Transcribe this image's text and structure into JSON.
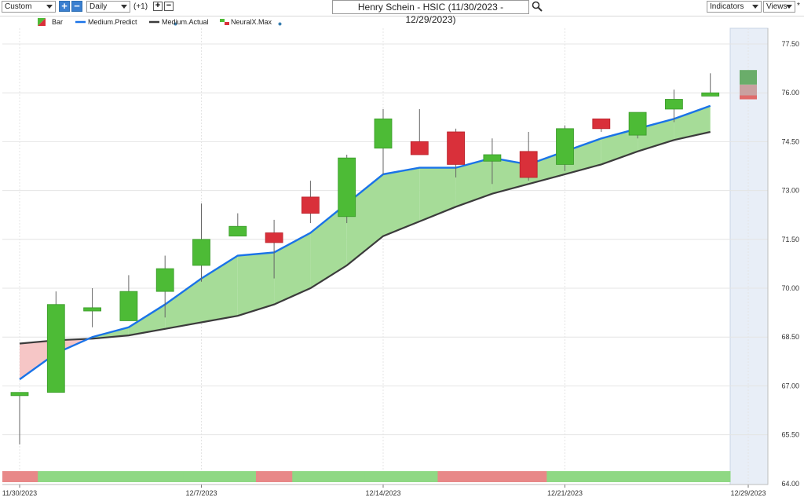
{
  "toolbar": {
    "range_select": "Custom",
    "period_select": "Daily",
    "offset_label": "(+1)",
    "chart_title": "Henry Schein - HSIC (11/30/2023 - 12/29/2023)",
    "indicators_label": "Indicators",
    "views_label": "Views",
    "views_marker": "*"
  },
  "legend": {
    "bar": "Bar",
    "predict": "Medium.Predict",
    "actual": "Medium.Actual",
    "neural": "NeuralX.Max"
  },
  "colors": {
    "up": "#4dbb36",
    "down": "#d9303a",
    "predict_line": "#1a73e8",
    "actual_line": "#3b3b3b",
    "fill_bull": "#a6dc98",
    "fill_bear": "#f6c6c6",
    "strip_bull": "#8fd884",
    "strip_bear": "#e88888",
    "forecast_zone": "#e8eef7"
  },
  "chart_data": {
    "type": "candlestick",
    "title": "Henry Schein - HSIC (11/30/2023 - 12/29/2023)",
    "x_tick_labels": [
      "11/30/2023",
      "12/7/2023",
      "12/14/2023",
      "12/21/2023",
      "12/29/2023"
    ],
    "x_tick_index": [
      0,
      5,
      10,
      15,
      20
    ],
    "y_ticks": [
      "77.50",
      "76.00",
      "74.50",
      "73.00",
      "71.50",
      "70.00",
      "68.50",
      "67.00",
      "65.50",
      "64.00"
    ],
    "ylim": [
      64.0,
      77.5
    ],
    "grid": true,
    "candles": [
      {
        "o": 66.7,
        "h": 66.8,
        "l": 65.2,
        "c": 66.8
      },
      {
        "o": 66.8,
        "h": 69.9,
        "l": 66.8,
        "c": 69.5
      },
      {
        "o": 69.3,
        "h": 70.0,
        "l": 68.8,
        "c": 69.4
      },
      {
        "o": 69.0,
        "h": 70.4,
        "l": 69.0,
        "c": 69.9
      },
      {
        "o": 69.9,
        "h": 71.0,
        "l": 69.1,
        "c": 70.6
      },
      {
        "o": 70.7,
        "h": 72.6,
        "l": 70.2,
        "c": 71.5
      },
      {
        "o": 71.6,
        "h": 72.3,
        "l": 71.6,
        "c": 71.9
      },
      {
        "o": 71.7,
        "h": 72.1,
        "l": 70.3,
        "c": 71.4
      },
      {
        "o": 72.8,
        "h": 73.3,
        "l": 72.0,
        "c": 72.3
      },
      {
        "o": 72.2,
        "h": 74.1,
        "l": 72.0,
        "c": 74.0
      },
      {
        "o": 74.3,
        "h": 75.5,
        "l": 73.5,
        "c": 75.2
      },
      {
        "o": 74.5,
        "h": 75.5,
        "l": 74.1,
        "c": 74.1
      },
      {
        "o": 74.8,
        "h": 74.9,
        "l": 73.4,
        "c": 73.8
      },
      {
        "o": 73.9,
        "h": 74.6,
        "l": 73.2,
        "c": 74.1
      },
      {
        "o": 74.2,
        "h": 74.8,
        "l": 73.3,
        "c": 73.4
      },
      {
        "o": 73.8,
        "h": 75.0,
        "l": 73.6,
        "c": 74.9
      },
      {
        "o": 75.2,
        "h": 75.2,
        "l": 74.8,
        "c": 74.9
      },
      {
        "o": 74.7,
        "h": 75.4,
        "l": 74.6,
        "c": 75.4
      },
      {
        "o": 75.5,
        "h": 76.1,
        "l": 75.1,
        "c": 75.8
      },
      {
        "o": 75.9,
        "h": 76.6,
        "l": 75.9,
        "c": 76.0
      }
    ],
    "series": [
      {
        "name": "Medium.Predict",
        "values": [
          67.2,
          68.0,
          68.5,
          68.8,
          69.5,
          70.3,
          71.0,
          71.1,
          71.7,
          72.6,
          73.5,
          73.7,
          73.7,
          74.0,
          73.8,
          74.2,
          74.6,
          74.9,
          75.2,
          75.6
        ]
      },
      {
        "name": "Medium.Actual",
        "values": [
          68.3,
          68.4,
          68.45,
          68.55,
          68.75,
          68.95,
          69.15,
          69.5,
          70.0,
          70.7,
          71.6,
          72.05,
          72.5,
          72.9,
          73.2,
          73.5,
          73.8,
          74.2,
          74.55,
          74.8
        ]
      }
    ],
    "forecast": {
      "o": 76.7,
      "c": 75.8
    },
    "signal_strip": [
      "bear",
      "bull",
      "bull",
      "bull",
      "bull",
      "bull",
      "bull",
      "bear",
      "bull",
      "bull",
      "bull",
      "bull",
      "bear",
      "bear",
      "bear",
      "bull",
      "bull",
      "bull",
      "bull",
      "bull"
    ]
  }
}
